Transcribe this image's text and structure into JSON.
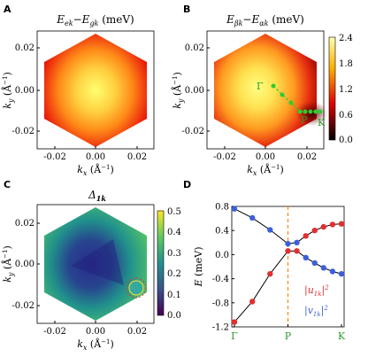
{
  "chart_data": [
    {
      "id": "A",
      "type": "heatmap",
      "panel_label": "A",
      "title": "E_ek − E_gk (meV)",
      "xlabel": "k_x (Å⁻¹)",
      "ylabel": "k_y (Å⁻¹)",
      "xlim": [
        -0.025,
        0.025
      ],
      "ylim": [
        -0.025,
        0.025
      ],
      "xticks": [
        "-0.02",
        "0.00",
        "0.02"
      ],
      "yticks": [
        "0.02",
        "0.00",
        "-0.02"
      ],
      "shape": "hexagon",
      "colormap": "hot",
      "colors": {
        "center": "#ffff60",
        "edge": "#e8160a"
      }
    },
    {
      "id": "B",
      "type": "heatmap",
      "panel_label": "B",
      "title": "E_βk − E_αk (meV)",
      "xlabel": "k_x (Å⁻¹)",
      "ylabel": "k_y (Å⁻¹)",
      "xlim": [
        -0.025,
        0.025
      ],
      "ylim": [
        -0.025,
        0.025
      ],
      "xticks": [
        "-0.02",
        "0.00",
        "0.02"
      ],
      "yticks": [
        "0.02",
        "0.00",
        "-0.02"
      ],
      "shape": "hexagon",
      "colormap": "hot",
      "colorbar": {
        "min": 0.0,
        "max": 2.4,
        "ticks": [
          "2.4",
          "1.8",
          "1.2",
          "0.6",
          "0.0"
        ]
      },
      "path_points": [
        "Γ",
        "P",
        "K"
      ],
      "path_color": "#2ecc2e"
    },
    {
      "id": "C",
      "type": "heatmap",
      "panel_label": "C",
      "title": "Δ_1k",
      "xlabel": "k_x (Å⁻¹)",
      "ylabel": "k_y (Å⁻¹)",
      "xlim": [
        -0.025,
        0.025
      ],
      "ylim": [
        -0.025,
        0.025
      ],
      "xticks": [
        "-0.02",
        "0.00",
        "0.02"
      ],
      "yticks": [
        "0.02",
        "0.00",
        "-0.02"
      ],
      "shape": "hexagon",
      "colormap": "viridis",
      "colorbar": {
        "min": 0.0,
        "max": 0.5,
        "ticks": [
          "0.5",
          "0.4",
          "0.3",
          "0.2",
          "0.1",
          "0.0"
        ]
      }
    },
    {
      "id": "D",
      "type": "line",
      "panel_label": "D",
      "ylabel": "E (meV)",
      "ylim": [
        -1.2,
        0.8
      ],
      "yticks": [
        "0.8",
        "0.4",
        "0.0",
        "-0.4",
        "-0.8",
        "-1.2"
      ],
      "xtick_labels": [
        "Γ",
        "P",
        "K"
      ],
      "x": [
        0,
        0.167,
        0.333,
        0.5,
        0.583,
        0.667,
        0.75,
        0.833,
        0.917,
        1.0
      ],
      "series": [
        {
          "values": [
            0.76,
            0.61,
            0.41,
            0.18,
            0.2,
            0.31,
            0.4,
            0.46,
            0.5,
            0.51
          ]
        },
        {
          "values": [
            -1.12,
            -0.78,
            -0.32,
            0.06,
            0.06,
            -0.05,
            -0.14,
            -0.22,
            -0.28,
            -0.32
          ]
        }
      ],
      "upper_dot_colors": [
        "#3d5fd9",
        "#3d5fd9",
        "#3d5fd9",
        "#3d5fd9",
        "#3d5fd9",
        "#e03030",
        "#e03030",
        "#e03030",
        "#e03030",
        "#e03030"
      ],
      "lower_dot_colors": [
        "#e03030",
        "#e03030",
        "#e03030",
        "#e03030",
        "#e03030",
        "#3d5fd9",
        "#3d5fd9",
        "#3d5fd9",
        "#3d5fd9",
        "#3d5fd9"
      ],
      "dashed_line_at": 0.5,
      "dashed_color": "#ff8c1a",
      "legend": [
        {
          "label": "|u_1k|²",
          "color": "#e03030"
        },
        {
          "label": "|v_1k|²",
          "color": "#3d5fd9"
        }
      ]
    }
  ]
}
